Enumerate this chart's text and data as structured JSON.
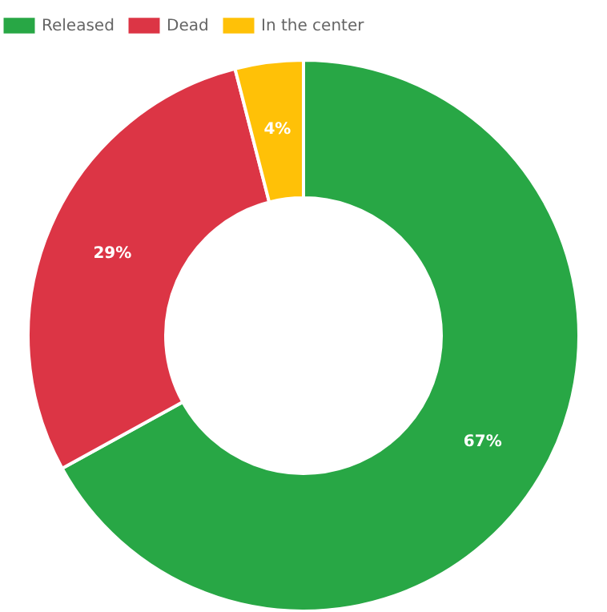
{
  "chart_data": {
    "type": "donut",
    "categories": [
      "Released",
      "Dead",
      "In the center"
    ],
    "values": [
      67,
      29,
      4
    ],
    "colors": [
      "#28a745",
      "#dc3545",
      "#ffc107"
    ],
    "value_labels": [
      "67%",
      "29%",
      "4%"
    ],
    "legend": "top"
  }
}
